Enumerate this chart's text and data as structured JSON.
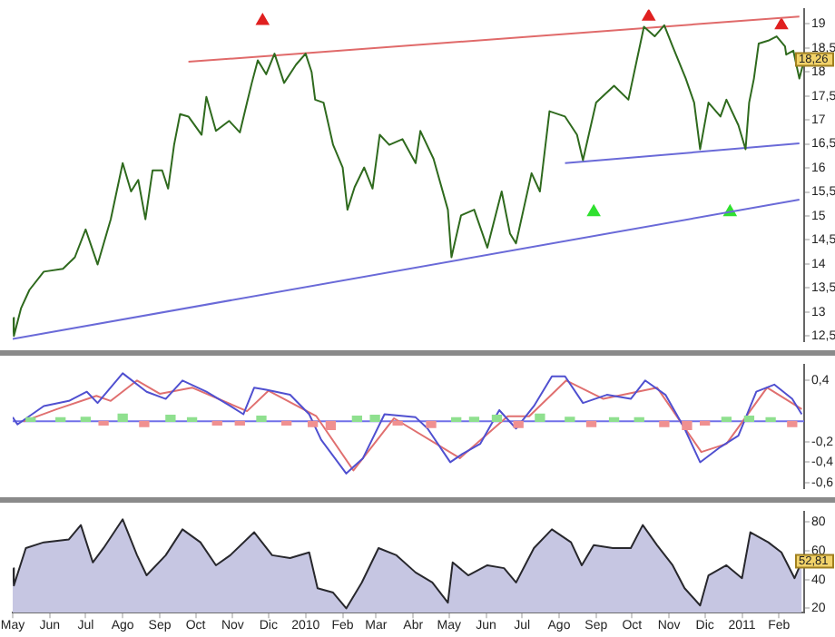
{
  "chart_data": [
    {
      "type": "line",
      "tick_labels": "y",
      "xlim": [
        "2009-05-01",
        "2011-02-22"
      ],
      "ylim": [
        12.4,
        19.3
      ],
      "yticks": [
        {
          "value": 12.5,
          "label": "12,5"
        },
        13,
        {
          "value": 13.5,
          "label": "13,5"
        },
        14,
        {
          "value": 14.5,
          "label": "14,5"
        },
        15,
        {
          "value": 15.5,
          "label": "15,5"
        },
        16,
        {
          "value": 16.5,
          "label": "16,5"
        },
        17,
        {
          "value": 17.5,
          "label": "17,5"
        },
        18,
        {
          "value": 18.5,
          "label": "18,5"
        },
        19
      ],
      "series": [
        {
          "color": "#2f6a1e",
          "marker": "none",
          "x": [
            "2009-05-01",
            "2009-05-02",
            "2009-05-08",
            "2009-05-15",
            "2009-05-27",
            "2009-06-12",
            "2009-06-22",
            "2009-07-01",
            "2009-07-11",
            "2009-07-22",
            "2009-08-01",
            "2009-08-08",
            "2009-08-14",
            "2009-08-20",
            "2009-08-26",
            "2009-09-03",
            "2009-09-08",
            "2009-09-13",
            "2009-09-18",
            "2009-09-25",
            "2009-10-06",
            "2009-10-10",
            "2009-10-18",
            "2009-10-29",
            "2009-11-07",
            "2009-11-13",
            "2009-11-17",
            "2009-11-22",
            "2009-11-29",
            "2009-12-06",
            "2009-12-14",
            "2009-12-24",
            "2010-01-01",
            "2010-01-06",
            "2010-01-09",
            "2010-01-16",
            "2010-01-24",
            "2010-02-01",
            "2010-02-05",
            "2010-02-11",
            "2010-02-19",
            "2010-02-26",
            "2010-03-04",
            "2010-03-12",
            "2010-03-23",
            "2010-04-03",
            "2010-04-07",
            "2010-04-18",
            "2010-04-30",
            "2010-05-03",
            "2010-05-11",
            "2010-05-22",
            "2010-06-02",
            "2010-06-14",
            "2010-06-21",
            "2010-06-26",
            "2010-07-09",
            "2010-07-16",
            "2010-07-24",
            "2010-08-06",
            "2010-08-16",
            "2010-08-21",
            "2010-09-01",
            "2010-09-16",
            "2010-09-28",
            "2010-10-05",
            "2010-10-11",
            "2010-10-20",
            "2010-10-28",
            "2010-11-04",
            "2010-11-15",
            "2010-11-22",
            "2010-11-27",
            "2010-12-04",
            "2010-12-14",
            "2010-12-19",
            "2010-12-29",
            "2011-01-04",
            "2011-01-07",
            "2011-01-11",
            "2011-01-15",
            "2011-01-23",
            "2011-01-30",
            "2011-02-06",
            "2011-02-07",
            "2011-02-13",
            "2011-02-18",
            "2011-02-21"
          ],
          "values": [
            12.88,
            12.5,
            13.08,
            13.46,
            13.84,
            13.9,
            14.14,
            14.72,
            13.99,
            14.93,
            16.1,
            15.51,
            15.75,
            14.93,
            15.95,
            15.95,
            15.57,
            16.48,
            17.12,
            17.07,
            16.69,
            17.48,
            16.77,
            16.98,
            16.74,
            17.36,
            17.77,
            18.24,
            17.95,
            18.38,
            17.77,
            18.15,
            18.38,
            18.0,
            17.42,
            17.36,
            16.48,
            16.01,
            15.13,
            15.6,
            16.01,
            15.57,
            16.69,
            16.48,
            16.6,
            16.1,
            16.77,
            16.19,
            15.13,
            14.14,
            15.01,
            15.13,
            14.34,
            15.51,
            14.63,
            14.43,
            15.89,
            15.51,
            17.18,
            17.07,
            16.69,
            16.16,
            17.36,
            17.71,
            17.42,
            18.24,
            18.94,
            18.74,
            18.97,
            18.53,
            17.86,
            17.36,
            16.39,
            17.36,
            17.07,
            17.42,
            16.89,
            16.39,
            17.36,
            17.86,
            18.59,
            18.65,
            18.74,
            18.53,
            18.36,
            18.44,
            17.86,
            18.15
          ]
        },
        {
          "color": "#e06a6a",
          "marker": "none",
          "x": [
            "2009-09-25",
            "2011-02-18"
          ],
          "values": [
            18.21,
            19.15
          ]
        },
        {
          "color": "#6a6ad8",
          "marker": "none",
          "x": [
            "2009-05-01",
            "2011-02-18"
          ],
          "values": [
            12.44,
            15.34
          ]
        },
        {
          "color": "#6a6ad8",
          "marker": "none",
          "x": [
            "2010-08-06",
            "2011-02-18"
          ],
          "values": [
            16.1,
            16.51
          ]
        },
        {
          "type": "scatter",
          "color": "#e02020",
          "marker": "triangle",
          "x": [
            "2009-11-26",
            "2010-10-15",
            "2011-02-03"
          ],
          "values": [
            19.06,
            19.15,
            18.97
          ]
        },
        {
          "type": "scatter",
          "color": "#30e030",
          "marker": "triangle",
          "x": [
            "2010-08-30",
            "2010-12-22"
          ],
          "values": [
            15.08,
            15.08
          ]
        }
      ],
      "annotations": [
        {
          "text": "18,26",
          "x": "2011-02-21",
          "y": 18.26
        }
      ]
    },
    {
      "type": "line",
      "tick_labels": "y",
      "xlim": [
        "2009-05-01",
        "2011-02-22"
      ],
      "ylim": [
        -0.65,
        0.55
      ],
      "yticks": [
        {
          "value": 0.4,
          "label": "0,4"
        },
        {
          "value": -0.2,
          "label": "-0,2"
        },
        {
          "value": -0.4,
          "label": "-0,4"
        },
        {
          "value": -0.6,
          "label": "-0,6"
        }
      ],
      "ref_lines": [
        {
          "axis": "y",
          "value": 0,
          "color": "#7070e8"
        }
      ],
      "series": [
        {
          "type": "bar",
          "x": [
            "2009-05-16",
            "2009-06-10",
            "2009-07-01",
            "2009-07-16",
            "2009-08-01",
            "2009-08-19",
            "2009-09-10",
            "2009-09-28",
            "2009-10-19",
            "2009-11-07",
            "2009-11-25",
            "2009-12-16",
            "2010-01-07",
            "2010-01-22",
            "2010-02-13",
            "2010-02-28",
            "2010-03-19",
            "2010-04-16",
            "2010-05-07",
            "2010-05-22",
            "2010-06-10",
            "2010-06-28",
            "2010-07-16",
            "2010-08-10",
            "2010-08-28",
            "2010-09-16",
            "2010-10-07",
            "2010-10-28",
            "2010-11-16",
            "2010-12-01",
            "2010-12-19",
            "2011-01-07",
            "2011-01-25",
            "2011-02-12"
          ],
          "values": [
            0.02,
            0.03,
            0.04,
            -0.03,
            0.07,
            -0.05,
            0.06,
            0.03,
            -0.03,
            -0.02,
            0.05,
            -0.02,
            -0.05,
            -0.08,
            0.05,
            0.06,
            -0.02,
            -0.06,
            0.03,
            0.04,
            0.06,
            -0.06,
            0.07,
            0.04,
            -0.05,
            0.02,
            0.03,
            -0.05,
            -0.08,
            -0.03,
            0.04,
            0.05,
            0.02,
            -0.05
          ],
          "colors": [
            "#8fe08f",
            "#8fe08f",
            "#8fe08f",
            "#f09090",
            "#8fe08f",
            "#f09090",
            "#8fe08f",
            "#8fe08f",
            "#f09090",
            "#f09090",
            "#8fe08f",
            "#f09090",
            "#f09090",
            "#f09090",
            "#8fe08f",
            "#8fe08f",
            "#f09090",
            "#f09090",
            "#8fe08f",
            "#8fe08f",
            "#8fe08f",
            "#f09090",
            "#8fe08f",
            "#8fe08f",
            "#f09090",
            "#8fe08f",
            "#8fe08f",
            "#f09090",
            "#f09090",
            "#f09090",
            "#8fe08f",
            "#8fe08f",
            "#8fe08f",
            "#f09090"
          ]
        },
        {
          "color": "#5050d0",
          "marker": "none",
          "x": [
            "2009-05-01",
            "2009-05-05",
            "2009-05-27",
            "2009-06-17",
            "2009-07-02",
            "2009-07-11",
            "2009-08-01",
            "2009-08-21",
            "2009-09-06",
            "2009-09-20",
            "2009-10-10",
            "2009-10-30",
            "2009-11-10",
            "2009-11-19",
            "2009-11-29",
            "2009-12-19",
            "2010-01-04",
            "2010-01-14",
            "2010-02-04",
            "2010-02-18",
            "2010-03-08",
            "2010-04-03",
            "2010-04-13",
            "2010-05-02",
            "2010-05-12",
            "2010-05-27",
            "2010-06-12",
            "2010-06-26",
            "2010-07-11",
            "2010-07-26",
            "2010-08-06",
            "2010-08-21",
            "2010-09-10",
            "2010-09-30",
            "2010-10-12",
            "2010-10-29",
            "2010-11-14",
            "2010-11-27",
            "2010-12-14",
            "2010-12-29",
            "2011-01-13",
            "2011-01-28",
            "2011-02-12",
            "2011-02-20"
          ],
          "values": [
            0.04,
            -0.03,
            0.15,
            0.2,
            0.29,
            0.18,
            0.47,
            0.29,
            0.22,
            0.4,
            0.29,
            0.15,
            0.07,
            0.33,
            0.31,
            0.26,
            0.07,
            -0.18,
            -0.51,
            -0.36,
            0.07,
            0.04,
            -0.07,
            -0.4,
            -0.32,
            -0.22,
            0.11,
            -0.07,
            0.15,
            0.44,
            0.44,
            0.18,
            0.26,
            0.22,
            0.4,
            0.26,
            -0.07,
            -0.4,
            -0.25,
            -0.14,
            0.29,
            0.36,
            0.22,
            0.07
          ]
        },
        {
          "color": "#e07070",
          "marker": "none",
          "x": [
            "2009-05-10",
            "2009-06-07",
            "2009-07-10",
            "2009-07-22",
            "2009-08-13",
            "2009-09-01",
            "2009-09-28",
            "2009-11-13",
            "2009-12-01",
            "2010-01-10",
            "2010-02-10",
            "2010-03-16",
            "2010-05-10",
            "2010-06-19",
            "2010-07-07",
            "2010-08-07",
            "2010-09-07",
            "2010-10-22",
            "2010-11-28",
            "2010-12-19",
            "2011-01-22",
            "2011-02-20"
          ],
          "values": [
            0.0,
            0.12,
            0.25,
            0.2,
            0.4,
            0.27,
            0.33,
            0.1,
            0.3,
            0.05,
            -0.48,
            0.03,
            -0.36,
            0.05,
            0.05,
            0.4,
            0.22,
            0.33,
            -0.3,
            -0.22,
            0.33,
            0.12
          ]
        }
      ]
    },
    {
      "type": "area",
      "xlim": [
        "2009-05-01",
        "2011-02-22"
      ],
      "ylim": [
        17,
        87
      ],
      "yticks": [
        20,
        40,
        60,
        80
      ],
      "xticks": [
        {
          "value": "2009-05",
          "label": "May"
        },
        {
          "value": "2009-06",
          "label": "Jun"
        },
        {
          "value": "2009-07",
          "label": "Jul"
        },
        {
          "value": "2009-08",
          "label": "Ago"
        },
        {
          "value": "2009-09",
          "label": "Sep"
        },
        {
          "value": "2009-10",
          "label": "Oct"
        },
        {
          "value": "2009-11",
          "label": "Nov"
        },
        {
          "value": "2009-12",
          "label": "Dic"
        },
        {
          "value": "2010-01",
          "label": "2010"
        },
        {
          "value": "2010-02",
          "label": "Feb"
        },
        {
          "value": "2010-03",
          "label": "Mar"
        },
        {
          "value": "2010-04",
          "label": "Abr"
        },
        {
          "value": "2010-05",
          "label": "May"
        },
        {
          "value": "2010-06",
          "label": "Jun"
        },
        {
          "value": "2010-07",
          "label": "Jul"
        },
        {
          "value": "2010-08",
          "label": "Ago"
        },
        {
          "value": "2010-09",
          "label": "Sep"
        },
        {
          "value": "2010-10",
          "label": "Oct"
        },
        {
          "value": "2010-11",
          "label": "Nov"
        },
        {
          "value": "2010-12",
          "label": "Dic"
        },
        {
          "value": "2011-01",
          "label": "2011"
        },
        {
          "value": "2011-02",
          "label": "Feb"
        }
      ],
      "series": [
        {
          "color": "#c6c6e2",
          "marker": "none",
          "x": [
            "2009-05-01",
            "2009-05-02",
            "2009-05-12",
            "2009-05-27",
            "2009-06-17",
            "2009-06-27",
            "2009-07-07",
            "2009-07-16",
            "2009-08-01",
            "2009-08-13",
            "2009-08-21",
            "2009-09-06",
            "2009-09-20",
            "2009-10-05",
            "2009-10-18",
            "2009-10-30",
            "2009-11-19",
            "2009-12-04",
            "2009-12-19",
            "2010-01-04",
            "2010-01-11",
            "2010-01-24",
            "2010-02-04",
            "2010-02-17",
            "2010-03-03",
            "2010-03-18",
            "2010-04-03",
            "2010-04-17",
            "2010-04-30",
            "2010-05-04",
            "2010-05-17",
            "2010-06-02",
            "2010-06-16",
            "2010-06-26",
            "2010-07-11",
            "2010-07-26",
            "2010-08-11",
            "2010-08-20",
            "2010-08-30",
            "2010-09-15",
            "2010-09-30",
            "2010-10-10",
            "2010-10-22",
            "2010-11-04",
            "2010-11-14",
            "2010-11-27",
            "2010-12-04",
            "2010-12-19",
            "2011-01-01",
            "2011-01-08",
            "2011-01-23",
            "2011-02-03",
            "2011-02-14",
            "2011-02-20"
          ],
          "values": [
            48,
            36,
            62,
            66,
            68,
            78,
            52,
            62,
            82,
            57,
            43,
            57,
            75,
            66,
            50,
            57,
            73,
            57,
            55,
            59,
            34,
            31,
            20,
            38,
            62,
            57,
            45,
            38,
            24,
            52,
            43,
            50,
            48,
            38,
            62,
            75,
            66,
            50,
            64,
            62,
            62,
            78,
            64,
            50,
            34,
            22,
            43,
            50,
            41,
            73,
            66,
            59,
            41,
            52.81
          ]
        }
      ],
      "annotations": [
        {
          "text": "52,81",
          "x": "2011-02-20",
          "y": 52.81
        }
      ]
    }
  ]
}
